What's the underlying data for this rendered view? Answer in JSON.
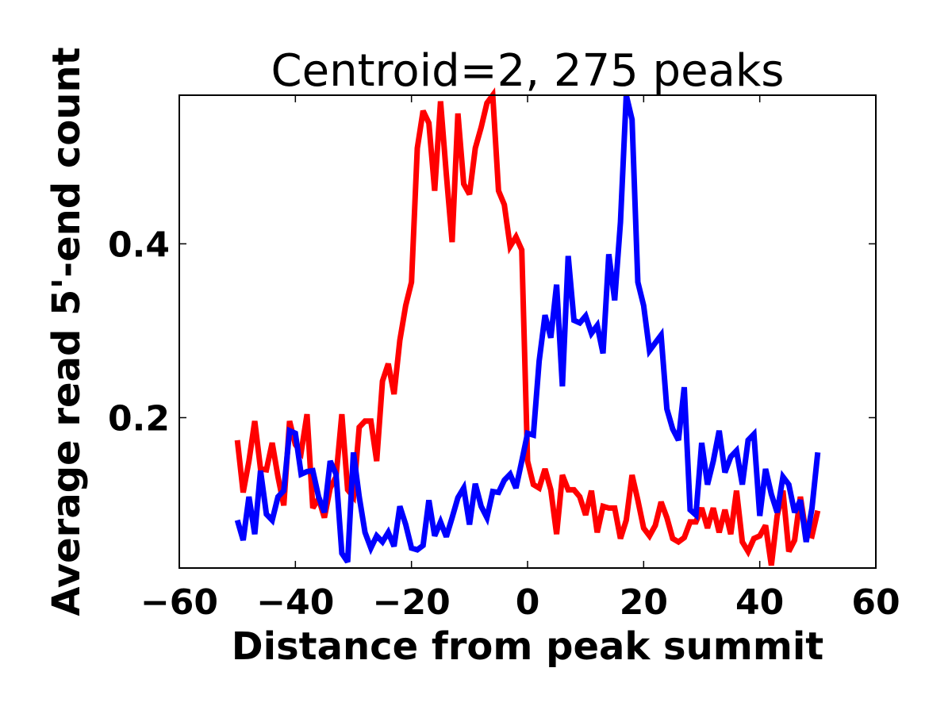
{
  "chart_data": {
    "type": "line",
    "title": "Centroid=2, 275 peaks",
    "xlabel": "Distance from peak summit",
    "ylabel": "Average read 5'-end count",
    "xlim": [
      -60,
      60
    ],
    "ylim": [
      0.027,
      0.571
    ],
    "xticks": [
      -60,
      -40,
      -20,
      0,
      20,
      40,
      60
    ],
    "xtick_labels": [
      "−60",
      "−40",
      "−20",
      "0",
      "20",
      "40",
      "60"
    ],
    "yticks": [
      0.2,
      0.4
    ],
    "ytick_labels": [
      "0.2",
      "0.4"
    ],
    "grid": false,
    "x_start": -50,
    "x_step": 1,
    "series": [
      {
        "name": "red",
        "color": "#ff0000",
        "values": [
          0.174,
          0.114,
          0.15,
          0.196,
          0.141,
          0.14,
          0.171,
          0.132,
          0.099,
          0.196,
          0.169,
          0.16,
          0.204,
          0.096,
          0.107,
          0.085,
          0.119,
          0.132,
          0.204,
          0.117,
          0.109,
          0.189,
          0.196,
          0.196,
          0.15,
          0.242,
          0.262,
          0.227,
          0.289,
          0.329,
          0.356,
          0.51,
          0.553,
          0.539,
          0.461,
          0.564,
          0.48,
          0.402,
          0.55,
          0.469,
          0.457,
          0.51,
          0.534,
          0.562,
          0.571,
          0.461,
          0.445,
          0.397,
          0.408,
          0.393,
          0.15,
          0.123,
          0.119,
          0.141,
          0.117,
          0.066,
          0.134,
          0.117,
          0.117,
          0.109,
          0.088,
          0.116,
          0.068,
          0.098,
          0.096,
          0.096,
          0.061,
          0.082,
          0.134,
          0.105,
          0.073,
          0.064,
          0.076,
          0.103,
          0.085,
          0.061,
          0.057,
          0.062,
          0.08,
          0.08,
          0.096,
          0.073,
          0.096,
          0.068,
          0.094,
          0.066,
          0.116,
          0.057,
          0.046,
          0.061,
          0.064,
          0.076,
          0.03,
          0.087,
          0.116,
          0.046,
          0.059,
          0.109,
          0.066,
          0.064,
          0.093
        ]
      },
      {
        "name": "blue",
        "color": "#0000ff",
        "values": [
          0.082,
          0.059,
          0.109,
          0.066,
          0.139,
          0.089,
          0.082,
          0.109,
          0.116,
          0.185,
          0.182,
          0.135,
          0.138,
          0.139,
          0.109,
          0.091,
          0.15,
          0.135,
          0.044,
          0.034,
          0.16,
          0.109,
          0.068,
          0.05,
          0.064,
          0.057,
          0.068,
          0.052,
          0.098,
          0.077,
          0.05,
          0.048,
          0.053,
          0.105,
          0.064,
          0.08,
          0.063,
          0.085,
          0.108,
          0.119,
          0.077,
          0.124,
          0.098,
          0.085,
          0.115,
          0.114,
          0.128,
          0.135,
          0.119,
          0.15,
          0.182,
          0.18,
          0.265,
          0.318,
          0.292,
          0.353,
          0.236,
          0.386,
          0.312,
          0.309,
          0.317,
          0.297,
          0.306,
          0.274,
          0.388,
          0.335,
          0.425,
          0.571,
          0.543,
          0.356,
          0.329,
          0.277,
          0.286,
          0.295,
          0.21,
          0.187,
          0.174,
          0.235,
          0.094,
          0.088,
          0.171,
          0.123,
          0.15,
          0.185,
          0.137,
          0.155,
          0.162,
          0.123,
          0.174,
          0.181,
          0.087,
          0.141,
          0.112,
          0.091,
          0.132,
          0.123,
          0.091,
          0.105,
          0.057,
          0.096,
          0.16
        ]
      }
    ]
  }
}
